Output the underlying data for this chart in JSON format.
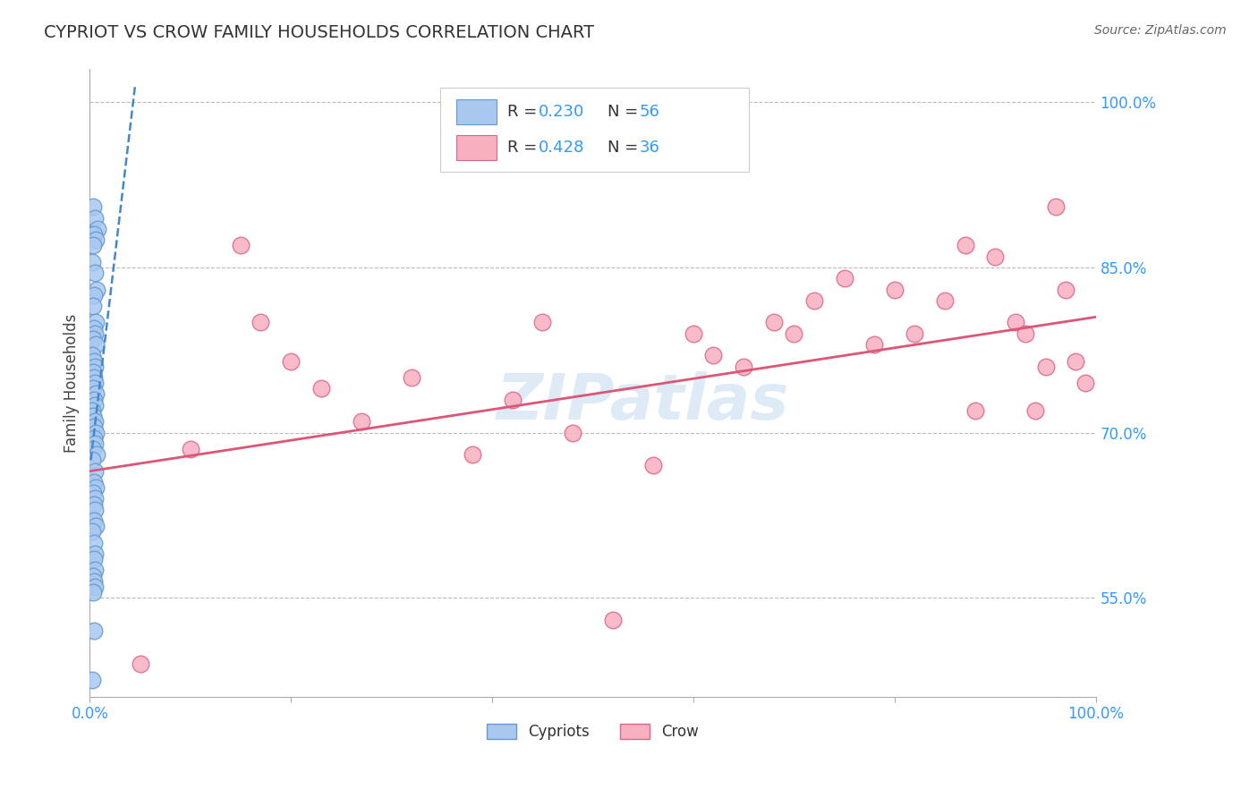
{
  "title": "CYPRIOT VS CROW FAMILY HOUSEHOLDS CORRELATION CHART",
  "source_text": "Source: ZipAtlas.com",
  "ylabel": "Family Households",
  "xlim": [
    0.0,
    100.0
  ],
  "ylim": [
    46.0,
    103.0
  ],
  "x_ticks": [
    0.0,
    20.0,
    40.0,
    60.0,
    80.0,
    100.0
  ],
  "x_tick_labels": [
    "0.0%",
    "",
    "",
    "",
    "",
    "100.0%"
  ],
  "y_ticks": [
    55.0,
    70.0,
    85.0,
    100.0
  ],
  "y_tick_labels": [
    "55.0%",
    "70.0%",
    "85.0%",
    "100.0%"
  ],
  "background_color": "#ffffff",
  "grid_color": "#bbbbbb",
  "cypriot_color": "#a8c8f0",
  "cypriot_edge_color": "#6699cc",
  "crow_color": "#f8b0c0",
  "crow_edge_color": "#dd6688",
  "cypriot_trend_color": "#4488cc",
  "crow_trend_color": "#dd5577",
  "watermark": "ZIPatlas",
  "cypriot_x": [
    0.3,
    0.5,
    0.8,
    0.4,
    0.6,
    0.3,
    0.2,
    0.5,
    0.7,
    0.4,
    0.3,
    0.6,
    0.4,
    0.5,
    0.3,
    0.6,
    0.2,
    0.4,
    0.5,
    0.3,
    0.4,
    0.5,
    0.3,
    0.6,
    0.4,
    0.5,
    0.2,
    0.3,
    0.5,
    0.4,
    0.6,
    0.4,
    0.5,
    0.3,
    0.7,
    0.2,
    0.5,
    0.4,
    0.6,
    0.3,
    0.5,
    0.4,
    0.5,
    0.4,
    0.6,
    0.2,
    0.4,
    0.5,
    0.4,
    0.5,
    0.3,
    0.4,
    0.5,
    0.3,
    0.4,
    0.2
  ],
  "cypriot_y": [
    90.5,
    89.5,
    88.5,
    88.0,
    87.5,
    87.0,
    85.5,
    84.5,
    83.0,
    82.5,
    81.5,
    80.0,
    79.5,
    79.0,
    78.5,
    78.0,
    77.0,
    76.5,
    76.0,
    75.5,
    75.0,
    74.5,
    74.0,
    73.5,
    73.0,
    72.5,
    72.0,
    71.5,
    71.0,
    70.5,
    70.0,
    69.5,
    69.0,
    68.5,
    68.0,
    67.5,
    66.5,
    65.5,
    65.0,
    64.5,
    64.0,
    63.5,
    63.0,
    62.0,
    61.5,
    61.0,
    60.0,
    59.0,
    58.5,
    57.5,
    57.0,
    56.5,
    56.0,
    55.5,
    52.0,
    47.5
  ],
  "crow_x": [
    5.0,
    10.0,
    15.0,
    17.0,
    20.0,
    23.0,
    27.0,
    32.0,
    38.0,
    42.0,
    45.0,
    48.0,
    52.0,
    56.0,
    60.0,
    62.0,
    65.0,
    68.0,
    70.0,
    72.0,
    75.0,
    78.0,
    80.0,
    82.0,
    85.0,
    87.0,
    88.0,
    90.0,
    92.0,
    93.0,
    94.0,
    95.0,
    96.0,
    97.0,
    98.0,
    99.0
  ],
  "crow_y": [
    49.0,
    68.5,
    87.0,
    80.0,
    76.5,
    74.0,
    71.0,
    75.0,
    68.0,
    73.0,
    80.0,
    70.0,
    53.0,
    67.0,
    79.0,
    77.0,
    76.0,
    80.0,
    79.0,
    82.0,
    84.0,
    78.0,
    83.0,
    79.0,
    82.0,
    87.0,
    72.0,
    86.0,
    80.0,
    79.0,
    72.0,
    76.0,
    90.5,
    83.0,
    76.5,
    74.5
  ],
  "cypriot_trend_x": [
    0.1,
    4.5
  ],
  "cypriot_trend_y": [
    67.5,
    101.5
  ],
  "crow_trend_x": [
    0.0,
    100.0
  ],
  "crow_trend_y": [
    66.5,
    80.5
  ]
}
